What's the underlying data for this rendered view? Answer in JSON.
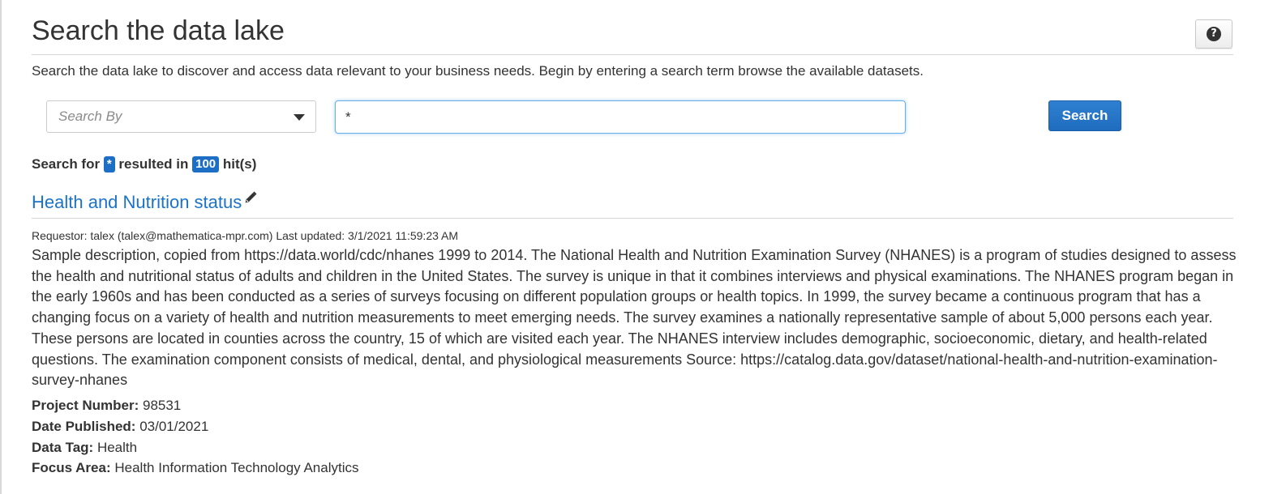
{
  "header": {
    "title": "Search the data lake",
    "help_icon": "question-circle-icon",
    "help_glyph": "?",
    "description": "Search the data lake to discover and access data relevant to your business needs. Begin by entering a search term browse the available datasets."
  },
  "search": {
    "search_by_placeholder": "Search By",
    "query_value": "*",
    "button_label": "Search"
  },
  "summary": {
    "prefix": "Search for",
    "query": "*",
    "middle": "resulted in",
    "hits": "100",
    "suffix": "hit(s)"
  },
  "results": [
    {
      "title": "Health and Nutrition status",
      "edit_icon": "pencil-icon",
      "meta": "Requestor: talex (talex@mathematica-mpr.com) Last updated: 3/1/2021 11:59:23 AM",
      "description": "Sample description, copied from https://data.world/cdc/nhanes 1999 to 2014. The National Health and Nutrition Examination Survey (NHANES) is a program of studies designed to assess the health and nutritional status of adults and children in the United States. The survey is unique in that it combines interviews and physical examinations. The NHANES program began in the early 1960s and has been conducted as a series of surveys focusing on different population groups or health topics. In 1999, the survey became a continuous program that has a changing focus on a variety of health and nutrition measurements to meet emerging needs. The survey examines a nationally representative sample of about 5,000 persons each year. These persons are located in counties across the country, 15 of which are visited each year. The NHANES interview includes demographic, socioeconomic, dietary, and health-related questions. The examination component consists of medical, dental, and physiological measurements Source: https://catalog.data.gov/dataset/national-health-and-nutrition-examination-survey-nhanes",
      "details": [
        {
          "label": "Project Number:",
          "value": "98531"
        },
        {
          "label": "Date Published:",
          "value": "03/01/2021"
        },
        {
          "label": "Data Tag:",
          "value": "Health"
        },
        {
          "label": "Focus Area:",
          "value": "Health Information Technology Analytics"
        }
      ]
    }
  ],
  "colors": {
    "link": "#1a73c7",
    "badge": "#1d6fc6",
    "primary_button": "#1f6cbf",
    "focus_border": "#66afe9"
  }
}
